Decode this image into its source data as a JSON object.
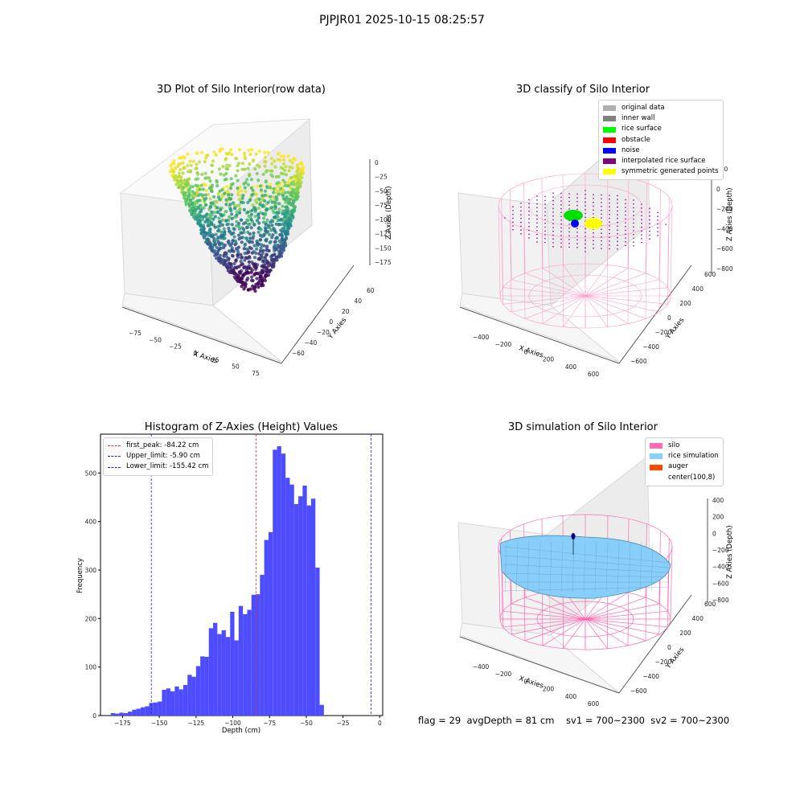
{
  "figure_title": "PJPJR01 2025-10-15 08:25:57",
  "footer": "flag = 29  avgDepth = 81 cm    sv1 = 700~2300  sv2 = 700~2300",
  "colors": {
    "histogram": "#4d4dff",
    "first_peak": "#e03030",
    "limits": "#2020d0",
    "silo": "#ff69b4",
    "rice": "#87cefa",
    "auger": "#ff4500"
  },
  "chart_data": [
    {
      "type": "scatter",
      "title": "3D Plot of Silo Interior(row data)",
      "xlabel": "X Axies",
      "ylabel": "Y Axies",
      "zlabel": "Z Axies (Depth)",
      "xticks": [
        "−75",
        "−50",
        "−25",
        "0",
        "25",
        "50",
        "75"
      ],
      "yticks": [
        "−60",
        "−40",
        "−20",
        "0",
        "20",
        "40",
        "60"
      ],
      "zticks": [
        "0",
        "−25",
        "−50",
        "−75",
        "−100",
        "−125",
        "−150",
        "−175"
      ],
      "colormap": "viridis",
      "grid": true
    },
    {
      "type": "scatter",
      "title": "3D classify of Silo Interior",
      "xlabel": "X Axies",
      "ylabel": "Y Axies",
      "zlabel": "Z Axies (Depth)",
      "xticks": [
        "−400",
        "−200",
        "0",
        "200",
        "400",
        "600"
      ],
      "yticks": [
        "−600",
        "−400",
        "−200",
        "0",
        "200",
        "400",
        "600"
      ],
      "zticks": [
        "200",
        "0",
        "−200",
        "−400",
        "−600",
        "−800"
      ],
      "legend_position": "top-right",
      "legend": [
        {
          "label": "original data",
          "color": "#b0b0b0"
        },
        {
          "label": "inner wall",
          "color": "#808080"
        },
        {
          "label": "rice surface",
          "color": "#00ff00"
        },
        {
          "label": "obstacle",
          "color": "#ff0000"
        },
        {
          "label": "noise",
          "color": "#0000ff"
        },
        {
          "label": "interpolated rice surface",
          "color": "#800080"
        },
        {
          "label": "symmetric generated points",
          "color": "#ffff00"
        }
      ],
      "grid": true
    },
    {
      "type": "bar",
      "title": "Histogram of Z-Axies (Height) Values",
      "xlabel": "Depth (cm)",
      "ylabel": "Frequency",
      "xlim": [
        -190,
        2
      ],
      "ylim": [
        0,
        580
      ],
      "xticks": [
        -175,
        -150,
        -125,
        -100,
        -75,
        -50,
        -25,
        0
      ],
      "xtick_labels": [
        "−175",
        "−150",
        "−125",
        "−100",
        "−75",
        "−50",
        "−25",
        "0"
      ],
      "yticks": [
        0,
        100,
        200,
        300,
        400,
        500
      ],
      "bin_start": -183,
      "bin_width": 2.9,
      "values": [
        5,
        4,
        6,
        5,
        8,
        12,
        14,
        17,
        19,
        26,
        27,
        29,
        53,
        56,
        50,
        60,
        54,
        63,
        84,
        80,
        102,
        122,
        121,
        180,
        191,
        168,
        176,
        162,
        214,
        155,
        226,
        209,
        218,
        249,
        250,
        290,
        362,
        378,
        548,
        555,
        540,
        490,
        476,
        436,
        452,
        474,
        433,
        447,
        305,
        22
      ],
      "vlines": [
        {
          "label": "first_peak: -84.22 cm",
          "x": -84.22,
          "color": "#e03030"
        },
        {
          "label": "Upper_limit: -5.90 cm",
          "x": -5.9,
          "color": "#2020d0"
        },
        {
          "label": "Lower_limit: -155.42 cm",
          "x": -155.42,
          "color": "#2020d0"
        }
      ],
      "legend_position": "top-left",
      "grid": false
    },
    {
      "type": "area",
      "title": "3D simulation of Silo Interior",
      "xlabel": "X Axies",
      "ylabel": "Y Axies",
      "zlabel": "Z Axies (Depth)",
      "xticks": [
        "−400",
        "−200",
        "0",
        "200",
        "400",
        "600"
      ],
      "yticks": [
        "−600",
        "−400",
        "−200",
        "0",
        "200",
        "400",
        "600"
      ],
      "zticks": [
        "400",
        "200",
        "0",
        "−200",
        "−400",
        "−600",
        "−800"
      ],
      "legend_position": "top-right",
      "legend": [
        {
          "label": "silo",
          "color": "#ff69b4"
        },
        {
          "label": "rice simulation",
          "color": "#87cefa"
        },
        {
          "label": "auger",
          "color": "#ff4500"
        },
        {
          "label": "center(100,8)",
          "color": "#ffffff"
        }
      ],
      "grid": true
    }
  ]
}
